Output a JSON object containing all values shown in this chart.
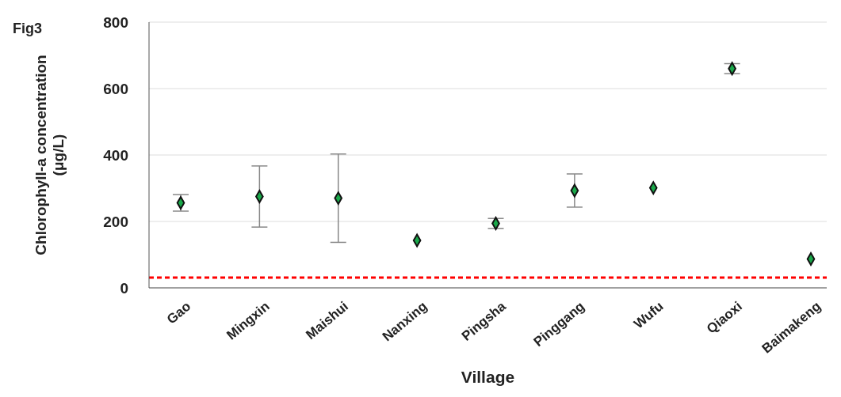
{
  "chart_data": {
    "type": "scatter",
    "annotations": [
      "Fig3"
    ],
    "xlabel": "Village",
    "ylabel": "Chlorophyll-a concentration (μg/L)",
    "categories": [
      "Gao",
      "Mingxin",
      "Maishui",
      "Nanxing",
      "Pingsha",
      "Pinggang",
      "Wufu",
      "Qiaoxi",
      "Baimakeng"
    ],
    "series": [
      {
        "color": "#1aa84a",
        "values": [
          256,
          275,
          270,
          143,
          194,
          293,
          301,
          660,
          87
        ],
        "errors": [
          25,
          92,
          133,
          null,
          15,
          50,
          null,
          15,
          null
        ]
      }
    ],
    "ylim": [
      0,
      800
    ],
    "yticks": [
      0,
      200,
      400,
      600,
      800
    ],
    "grid": "y",
    "marker": "diamond",
    "ref_lines": [
      {
        "axis": "y",
        "value": 31,
        "color": "#ff0000",
        "line_style": "dashed"
      }
    ]
  }
}
